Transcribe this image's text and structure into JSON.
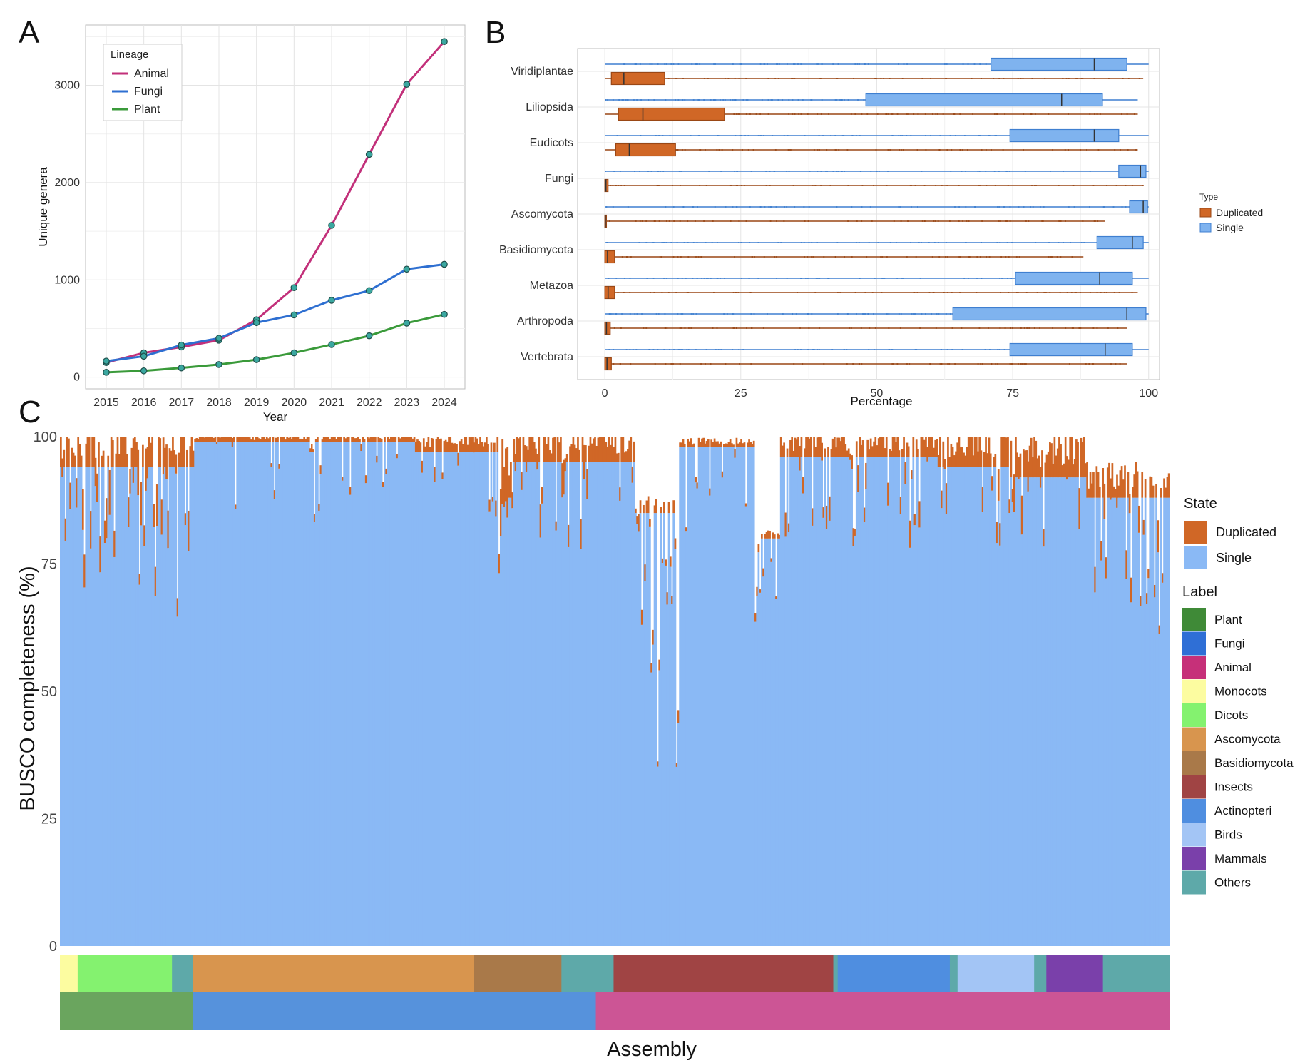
{
  "panel_labels": {
    "a": "A",
    "b": "B",
    "c": "C"
  },
  "colors": {
    "animal": "#c2307a",
    "fungi": "#2e6fd1",
    "plant": "#3a9a3a",
    "point_fill": "#3aa7a0",
    "duplicated": "#d06726",
    "single": "#8ab9f5",
    "box_single": "#7fb3ef",
    "box_single_stroke": "#3f7fd0"
  },
  "chart_data": [
    {
      "panel": "A",
      "type": "line",
      "xlabel": "Year",
      "ylabel": "Unique genera",
      "x": [
        2015,
        2016,
        2017,
        2018,
        2019,
        2020,
        2021,
        2022,
        2023,
        2024
      ],
      "xticks": [
        "2015",
        "2016",
        "2017",
        "2018",
        "2019",
        "2020",
        "2021",
        "2022",
        "2023",
        "2024"
      ],
      "yticks": [
        "0",
        "1000",
        "2000",
        "3000"
      ],
      "ylim": [
        -120,
        3620
      ],
      "grid": true,
      "legend": {
        "title": "Lineage",
        "position": "top-left"
      },
      "series": [
        {
          "name": "Animal",
          "color_key": "animal",
          "values": [
            150,
            250,
            310,
            380,
            590,
            920,
            1560,
            2290,
            3010,
            3450
          ]
        },
        {
          "name": "Fungi",
          "color_key": "fungi",
          "values": [
            165,
            215,
            330,
            400,
            560,
            640,
            790,
            890,
            1110,
            1160
          ]
        },
        {
          "name": "Plant",
          "color_key": "plant",
          "values": [
            50,
            65,
            95,
            130,
            180,
            250,
            335,
            425,
            555,
            645
          ]
        }
      ]
    },
    {
      "panel": "B",
      "type": "box",
      "xlabel": "Percentage",
      "xticks": [
        "0",
        "25",
        "50",
        "75",
        "100"
      ],
      "xlim": [
        -5,
        102
      ],
      "legend": {
        "title": "Type",
        "position": "right",
        "entries": [
          "Duplicated",
          "Single"
        ]
      },
      "groups": [
        {
          "name": "Viridiplantae",
          "single": [
            0,
            71,
            90,
            96,
            100
          ],
          "duplicated": [
            0,
            1.2,
            3.5,
            11,
            99
          ]
        },
        {
          "name": "Liliopsida",
          "single": [
            0,
            48,
            84,
            91.5,
            98
          ],
          "duplicated": [
            0,
            2.5,
            7,
            22,
            98
          ]
        },
        {
          "name": "Eudicots",
          "single": [
            0,
            74.5,
            90,
            94.5,
            100
          ],
          "duplicated": [
            0,
            2,
            4.5,
            13,
            98
          ]
        },
        {
          "name": "Fungi",
          "single": [
            0,
            94.5,
            98.5,
            99.5,
            100
          ],
          "duplicated": [
            0,
            0,
            0.2,
            0.6,
            99
          ]
        },
        {
          "name": "Ascomycota",
          "single": [
            0,
            96.5,
            99,
            99.8,
            100
          ],
          "duplicated": [
            0,
            0,
            0.1,
            0.3,
            92
          ]
        },
        {
          "name": "Basidiomycota",
          "single": [
            0,
            90.5,
            97,
            99,
            100
          ],
          "duplicated": [
            0,
            0,
            0.5,
            1.8,
            88
          ]
        },
        {
          "name": "Metazoa",
          "single": [
            0,
            75.5,
            91,
            97,
            100
          ],
          "duplicated": [
            0,
            0,
            0.6,
            1.8,
            98
          ]
        },
        {
          "name": "Arthropoda",
          "single": [
            0,
            64,
            96,
            99.5,
            100
          ],
          "duplicated": [
            0,
            0,
            0.3,
            1,
            96
          ]
        },
        {
          "name": "Vertebrata",
          "single": [
            0,
            74.5,
            92,
            97,
            100
          ],
          "duplicated": [
            0,
            0,
            0.4,
            1.2,
            96
          ]
        }
      ]
    },
    {
      "panel": "C",
      "type": "bar",
      "stacked": true,
      "xlabel": "Assembly",
      "ylabel": "BUSCO completeness (%)",
      "yticks": [
        "0",
        "25",
        "50",
        "75",
        "100"
      ],
      "ylim": [
        0,
        100
      ],
      "legend_state": {
        "title": "State",
        "entries": [
          {
            "name": "Duplicated",
            "color_key": "duplicated"
          },
          {
            "name": "Single",
            "color_key": "single"
          }
        ]
      },
      "legend_label": {
        "title": "Label",
        "entries": [
          {
            "name": "Plant",
            "color": "#3f8a37"
          },
          {
            "name": "Fungi",
            "color": "#2f6fd6"
          },
          {
            "name": "Animal",
            "color": "#c63079"
          },
          {
            "name": "Monocots",
            "color": "#fcfca0"
          },
          {
            "name": "Dicots",
            "color": "#84f26f"
          },
          {
            "name": "Ascomycota",
            "color": "#d8954e"
          },
          {
            "name": "Basidiomycota",
            "color": "#a97949"
          },
          {
            "name": "Insects",
            "color": "#a04444"
          },
          {
            "name": "Actinopteri",
            "color": "#4f8ee0"
          },
          {
            "name": "Birds",
            "color": "#a3c5f5"
          },
          {
            "name": "Mammals",
            "color": "#7a40aa"
          },
          {
            "name": "Others",
            "color": "#5ea9a9"
          }
        ]
      },
      "label_track": [
        {
          "label": "Monocots",
          "share": 1.6
        },
        {
          "label": "Dicots",
          "share": 8.5
        },
        {
          "label": "Others",
          "share": 1.9
        },
        {
          "label": "Ascomycota",
          "share": 25.3
        },
        {
          "label": "Basidiomycota",
          "share": 7.9
        },
        {
          "label": "Others",
          "share": 4.7
        },
        {
          "label": "Insects",
          "share": 19.8
        },
        {
          "label": "Others",
          "share": 0.4
        },
        {
          "label": "Actinopteri",
          "share": 10.1
        },
        {
          "label": "Others",
          "share": 0.7
        },
        {
          "label": "Birds",
          "share": 6.9
        },
        {
          "label": "Others",
          "share": 1.1
        },
        {
          "label": "Mammals",
          "share": 5.1
        },
        {
          "label": "Others",
          "share": 6.0
        }
      ],
      "lineage_track": [
        {
          "label": "Plant",
          "share": 12.0,
          "color": "#6aa55e"
        },
        {
          "label": "Fungi",
          "share": 36.3,
          "color": "#5692dc"
        },
        {
          "label": "Animal",
          "share": 51.7,
          "color": "#cc5595"
        }
      ],
      "segments": [
        {
          "share": 11.8,
          "single": 94,
          "duplicated": 5,
          "dip": 0.55
        },
        {
          "share": 0.3,
          "single": 94,
          "duplicated": 4,
          "dip": 0.8
        },
        {
          "share": 10.4,
          "single": 99,
          "duplicated": 1,
          "dip": 0.1
        },
        {
          "share": 0.5,
          "single": 97,
          "duplicated": 1,
          "dip": 0.4
        },
        {
          "share": 9.0,
          "single": 99,
          "duplicated": 1,
          "dip": 0.15
        },
        {
          "share": 7.5,
          "single": 97,
          "duplicated": 2,
          "dip": 0.25
        },
        {
          "share": 1.2,
          "single": 88,
          "duplicated": 8,
          "dip": 0.6
        },
        {
          "share": 11.1,
          "single": 95,
          "duplicated": 4,
          "dip": 0.35
        },
        {
          "share": 4.0,
          "single": 85,
          "duplicated": 2,
          "dip": 0.95
        },
        {
          "share": 6.8,
          "single": 98,
          "duplicated": 1,
          "dip": 0.2
        },
        {
          "share": 2.3,
          "single": 80,
          "duplicated": 1,
          "dip": 0.5
        },
        {
          "share": 14.2,
          "single": 96,
          "duplicated": 3,
          "dip": 0.3
        },
        {
          "share": 6.4,
          "single": 94,
          "duplicated": 5,
          "dip": 0.35
        },
        {
          "share": 7.0,
          "single": 92,
          "duplicated": 5,
          "dip": 0.4
        },
        {
          "share": 7.5,
          "single": 88,
          "duplicated": 4,
          "dip": 0.5
        }
      ]
    }
  ]
}
